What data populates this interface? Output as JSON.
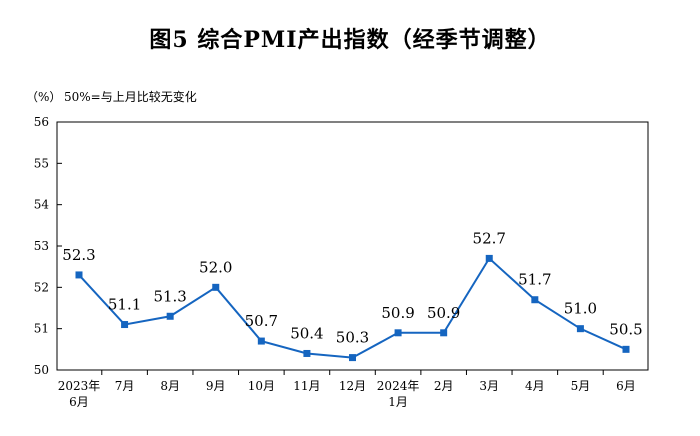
{
  "title": "图5 综合PMI产出指数（经季节调整）",
  "unit_label": "（%）",
  "note": "50%=与上月比较无变化",
  "chart_data": {
    "type": "line",
    "title": "图5 综合PMI产出指数（经季节调整）",
    "xlabel": "",
    "ylabel": "（%）",
    "ylim": [
      50,
      56
    ],
    "y_ticks": [
      "50",
      "51",
      "52",
      "53",
      "54",
      "55",
      "56"
    ],
    "categories": [
      [
        "2023年",
        "6月"
      ],
      [
        "7月"
      ],
      [
        "8月"
      ],
      [
        "9月"
      ],
      [
        "10月"
      ],
      [
        "11月"
      ],
      [
        "12月"
      ],
      [
        "2024年",
        "1月"
      ],
      [
        "2月"
      ],
      [
        "3月"
      ],
      [
        "4月"
      ],
      [
        "5月"
      ],
      [
        "6月"
      ]
    ],
    "series": [
      {
        "values": [
          52.3,
          51.1,
          51.3,
          52.0,
          50.7,
          50.4,
          50.3,
          50.9,
          50.9,
          52.7,
          51.7,
          51.0,
          50.5
        ],
        "labels": [
          "52.3",
          "51.1",
          "51.3",
          "52.0",
          "50.7",
          "50.4",
          "50.3",
          "50.9",
          "50.9",
          "52.7",
          "51.7",
          "51.0",
          "50.5"
        ],
        "color": "#1565c0"
      }
    ],
    "grid": false,
    "legend": "none"
  }
}
